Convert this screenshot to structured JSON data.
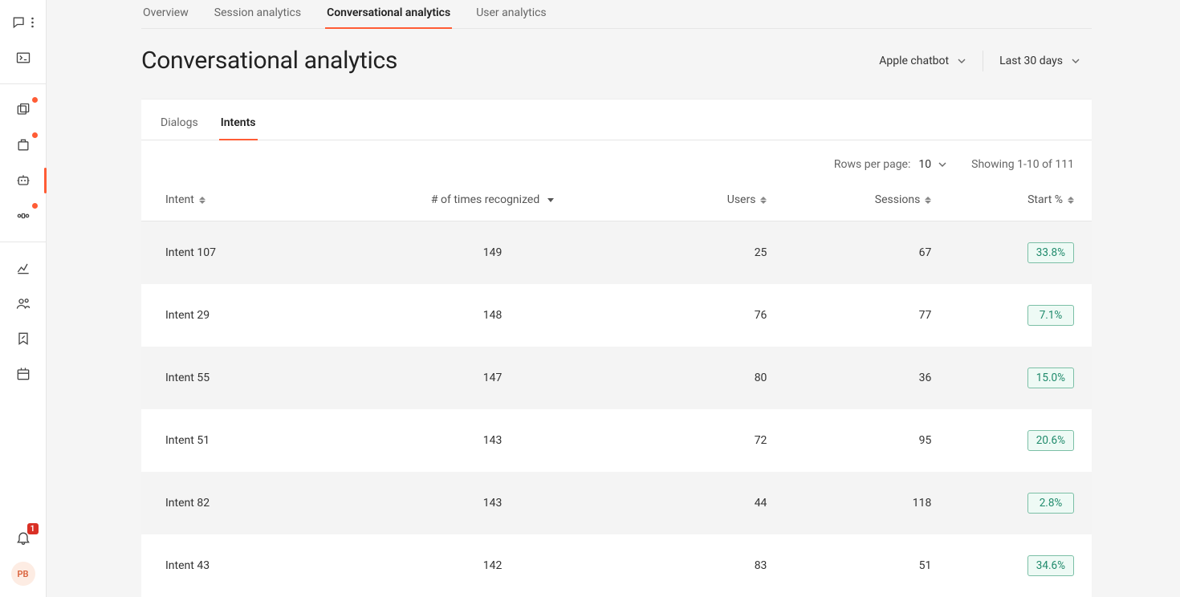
{
  "sidebar": {
    "notification_count": "1",
    "avatar_initials": "PB"
  },
  "top_tabs": [
    {
      "label": "Overview",
      "active": false
    },
    {
      "label": "Session analytics",
      "active": false
    },
    {
      "label": "Conversational analytics",
      "active": true
    },
    {
      "label": "User analytics",
      "active": false
    }
  ],
  "page_title": "Conversational analytics",
  "filters": {
    "bot": "Apple chatbot",
    "range": "Last 30 days"
  },
  "sub_tabs": [
    {
      "label": "Dialogs",
      "active": false
    },
    {
      "label": "Intents",
      "active": true
    }
  ],
  "pagination": {
    "rows_per_page_label": "Rows per page:",
    "rows_per_page_value": "10",
    "showing_text": "Showing 1-10 of 111"
  },
  "table": {
    "columns": [
      {
        "label": "Intent",
        "sort": "both"
      },
      {
        "label": "# of times recognized",
        "sort": "down"
      },
      {
        "label": "Users",
        "sort": "both"
      },
      {
        "label": "Sessions",
        "sort": "both"
      },
      {
        "label": "Start %",
        "sort": "both"
      }
    ],
    "rows": [
      {
        "intent": "Intent 107",
        "recognized": "149",
        "users": "25",
        "sessions": "67",
        "start": "33.8%"
      },
      {
        "intent": "Intent 29",
        "recognized": "148",
        "users": "76",
        "sessions": "77",
        "start": "7.1%"
      },
      {
        "intent": "Intent 55",
        "recognized": "147",
        "users": "80",
        "sessions": "36",
        "start": "15.0%"
      },
      {
        "intent": "Intent 51",
        "recognized": "143",
        "users": "72",
        "sessions": "95",
        "start": "20.6%"
      },
      {
        "intent": "Intent 82",
        "recognized": "143",
        "users": "44",
        "sessions": "118",
        "start": "2.8%"
      },
      {
        "intent": "Intent 43",
        "recognized": "142",
        "users": "83",
        "sessions": "51",
        "start": "34.6%"
      }
    ]
  },
  "colors": {
    "accent": "#ff5c35",
    "badge_border": "#7bbfa6",
    "badge_text": "#1f8a6b",
    "badge_bg": "#eefaf5"
  }
}
